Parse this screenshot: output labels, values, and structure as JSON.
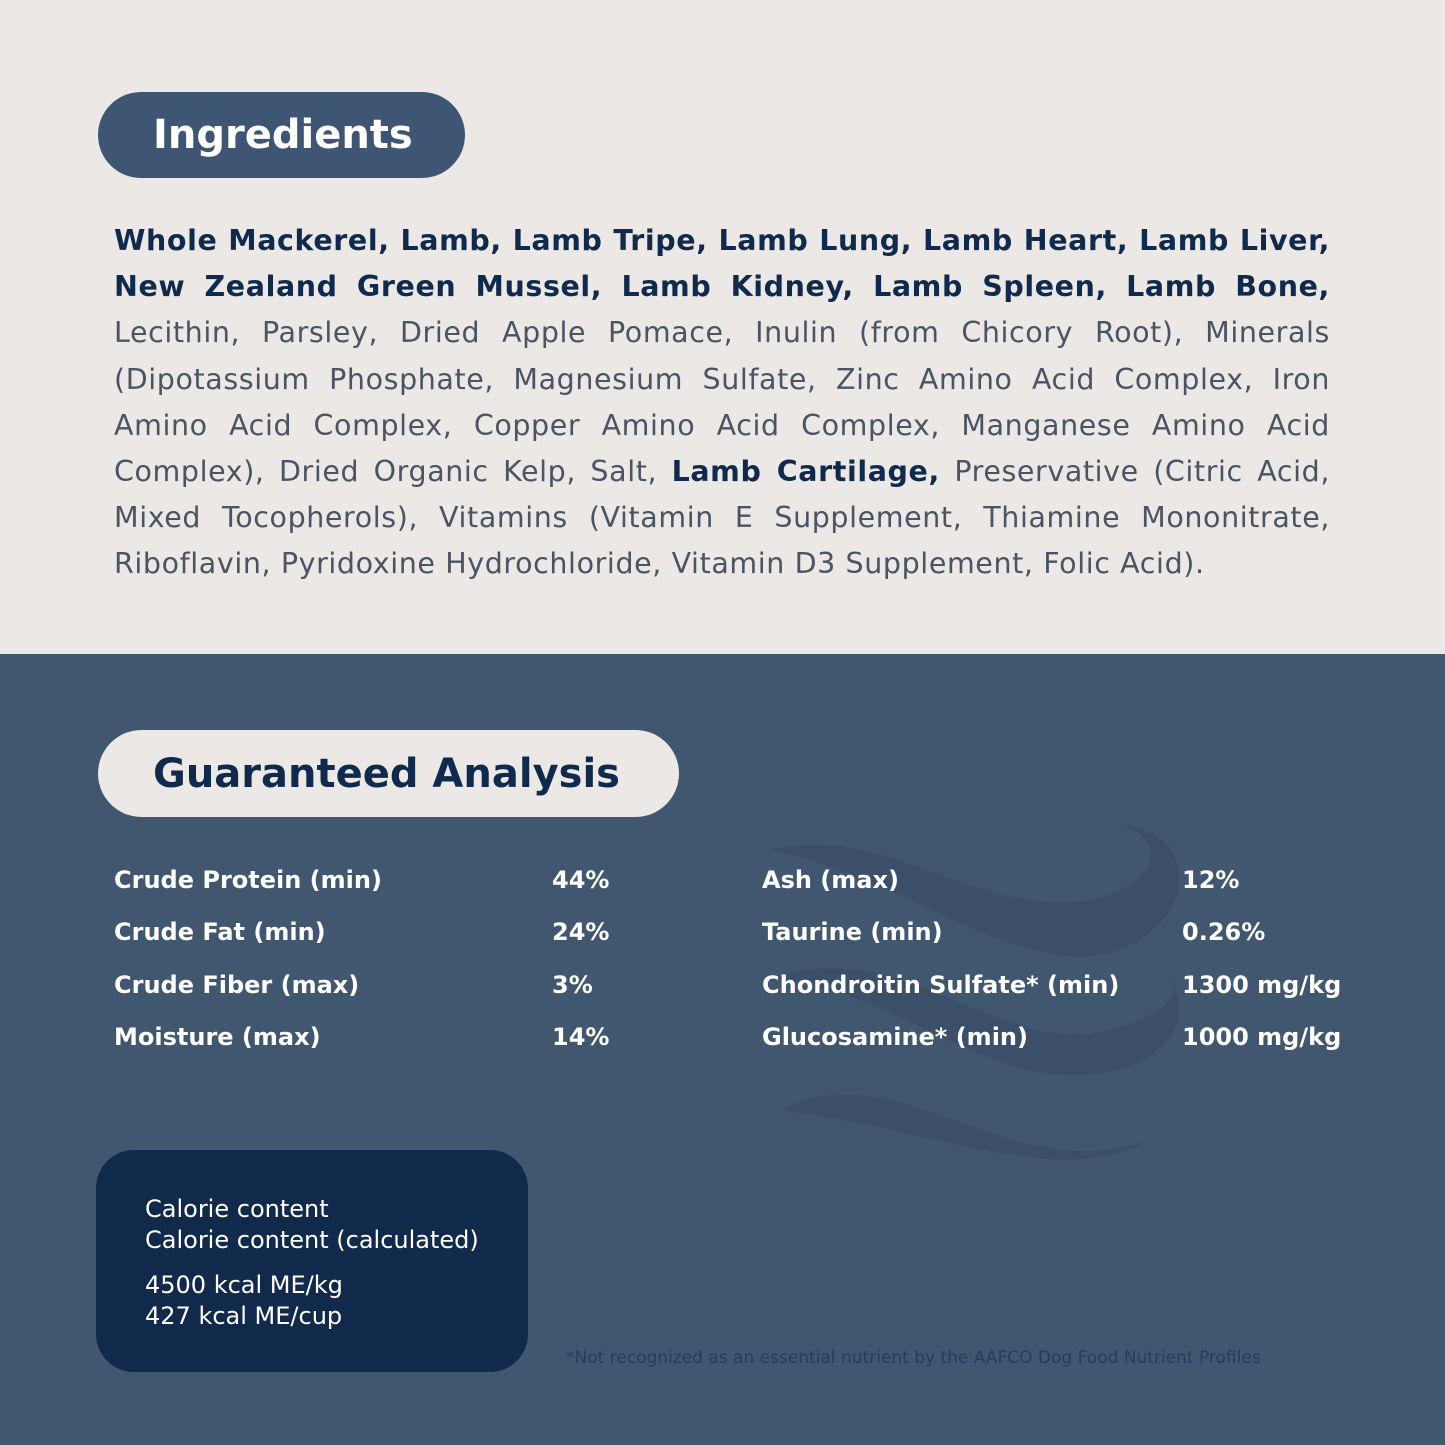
{
  "ingredients": {
    "title": "Ingredients",
    "segments": [
      {
        "text": "Whole Mackerel, Lamb, Lamb Tripe, Lamb Lung, Lamb Heart, Lamb Liver, New Zealand Green Mussel, Lamb Kidney, Lamb Spleen, Lamb Bone,",
        "bold": true
      },
      {
        "text": " Lecithin, Parsley, Dried Apple Pomace, Inulin (from Chicory Root), Minerals (Dipotassium Phosphate, Magnesium Sulfate, Zinc Amino Acid Complex, Iron Amino Acid Complex, Copper Amino Acid Complex, Manganese Amino Acid Complex), Dried Organic Kelp, Salt, ",
        "bold": false
      },
      {
        "text": "Lamb Cartilage,",
        "bold": true
      },
      {
        "text": " Preservative (Citric Acid, Mixed Tocopherols), Vitamins (Vitamin E Supplement, Thiamine Mononitrate, Riboflavin, Pyridoxine Hydrochloride, Vitamin D3 Supplement, Folic Acid).",
        "bold": false
      }
    ]
  },
  "analysis": {
    "title": "Guaranteed Analysis",
    "left": [
      {
        "label": "Crude Protein (min)",
        "value": "44%"
      },
      {
        "label": "Crude Fat (min)",
        "value": "24%"
      },
      {
        "label": "Crude Fiber (max)",
        "value": "3%"
      },
      {
        "label": "Moisture (max)",
        "value": "14%"
      }
    ],
    "right": [
      {
        "label": "Ash (max)",
        "value": "12%"
      },
      {
        "label": "Taurine (min)",
        "value": "0.26%"
      },
      {
        "label": "Chondroitin Sulfate* (min)",
        "value": "1300 mg/kg"
      },
      {
        "label": "Glucosamine* (min)",
        "value": "1000 mg/kg"
      }
    ]
  },
  "calorie": {
    "line1": "Calorie content",
    "line2": "Calorie content (calculated)",
    "value1": "4500 kcal ME/kg",
    "value2": "427 kcal ME/cup"
  },
  "footnote": "*Not recognized as an essential nutrient by the AAFCO Dog Food Nutrient Profiles",
  "decoration": "wave-icon",
  "colors": {
    "light_bg": "#ebe8e5",
    "dark_bg": "#41566f",
    "navy": "#112a4c",
    "pill": "#3e5574"
  }
}
